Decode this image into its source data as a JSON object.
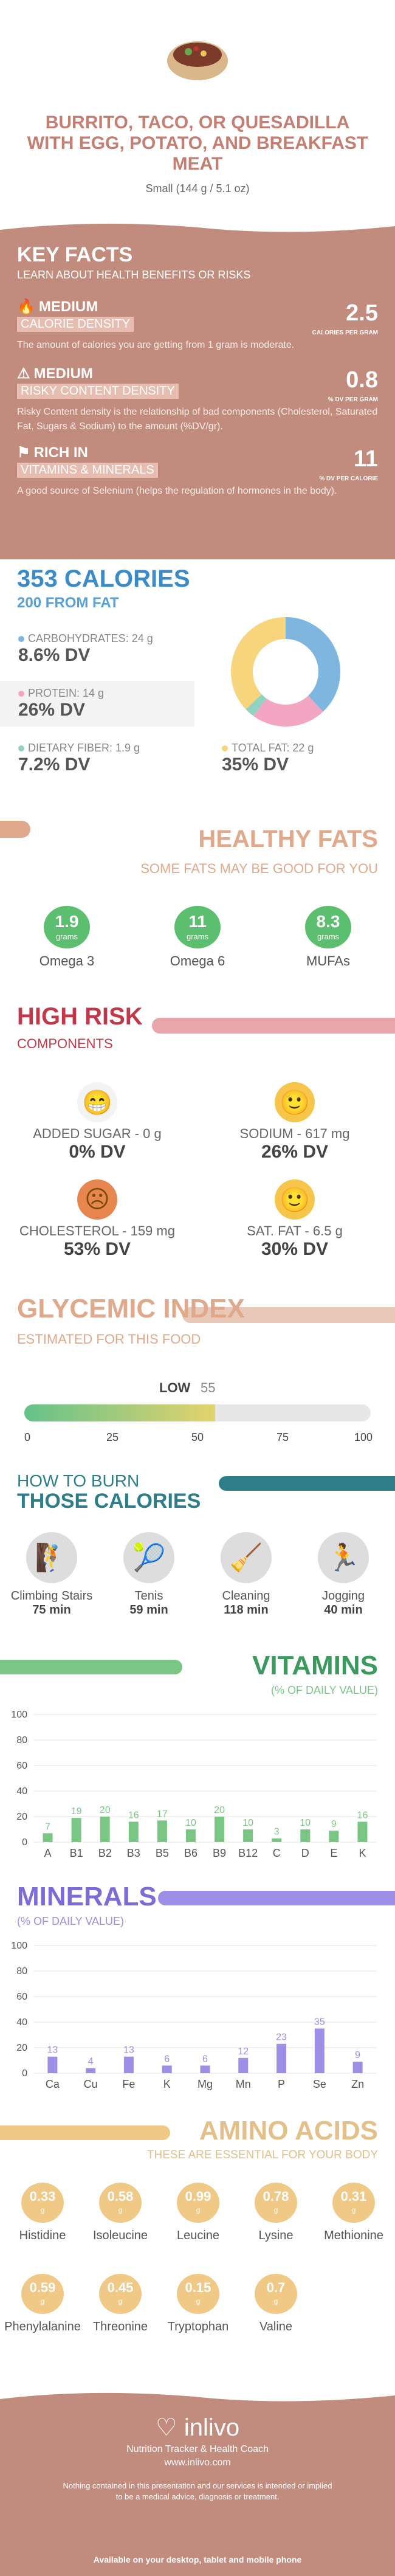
{
  "header": {
    "title": "BURRITO, TACO, OR QUESADILLA WITH EGG, POTATO, AND BREAKFAST MEAT",
    "serving": "Small (144 g / 5.1 oz)"
  },
  "key_facts": {
    "title": "KEY FACTS",
    "subtitle": "LEARN ABOUT HEALTH BENEFITS OR RISKS",
    "items": [
      {
        "tag": "MEDIUM",
        "label": "CALORIE DENSITY",
        "desc": "The amount of calories you are getting from 1 gram is moderate.",
        "value": "2.5",
        "unit": "CALORIES PER GRAM"
      },
      {
        "tag": "MEDIUM",
        "label": "RISKY CONTENT DENSITY",
        "desc": "Risky Content density is the relationship of bad components (Cholesterol, Saturated Fat, Sugars & Sodium) to the amount (%DV/gr).",
        "value": "0.8",
        "unit": "% DV PER GRAM"
      },
      {
        "tag": "RICH  IN",
        "label": "VITAMINS & MINERALS",
        "desc": "A good source of Selenium (helps the regulation of hormones in the body).",
        "value": "11",
        "unit": "% DV PER CALORIE"
      }
    ]
  },
  "calories": {
    "title": "353 CALORIES",
    "from_fat": "200 FROM FAT",
    "nutrients": [
      {
        "name": "CARBOHYDRATES: 24 g",
        "dv": "8.6% DV",
        "color": "#7fb6e0"
      },
      {
        "name": "PROTEIN: 14 g",
        "dv": "26% DV",
        "color": "#f3a6c2"
      },
      {
        "name": "DIETARY FIBER: 1.9 g",
        "dv": "7.2% DV",
        "color": "#8fd3c0"
      },
      {
        "name": "TOTAL FAT: 22 g",
        "dv": "35% DV",
        "color": "#f7d57c"
      }
    ],
    "donut": [
      {
        "value": 38,
        "color": "#7fb6e0"
      },
      {
        "value": 22,
        "color": "#f3a6c2"
      },
      {
        "value": 3,
        "color": "#8fd3c0"
      },
      {
        "value": 37,
        "color": "#f7d57c"
      }
    ]
  },
  "healthy_fats": {
    "title": "HEALTHY FATS",
    "subtitle": "SOME FATS MAY BE GOOD FOR YOU",
    "items": [
      {
        "value": "1.9",
        "unit": "grams",
        "name": "Omega 3"
      },
      {
        "value": "11",
        "unit": "grams",
        "name": "Omega 6"
      },
      {
        "value": "8.3",
        "unit": "grams",
        "name": "MUFAs"
      }
    ]
  },
  "high_risk": {
    "title": "HIGH RISK",
    "subtitle": "COMPONENTS",
    "items": [
      {
        "name": "ADDED SUGAR - 0 g",
        "dv": "0% DV",
        "face": "😁",
        "color": "#f3f3f3"
      },
      {
        "name": "SODIUM - 617 mg",
        "dv": "26% DV",
        "face": "🙂",
        "color": "#f7c54a"
      },
      {
        "name": "CHOLESTEROL - 159 mg",
        "dv": "53% DV",
        "face": "☹",
        "color": "#e8864f"
      },
      {
        "name": "SAT. FAT - 6.5 g",
        "dv": "30% DV",
        "face": "🙂",
        "color": "#f7c54a"
      }
    ]
  },
  "glycemic": {
    "title": "GLYCEMIC INDEX",
    "subtitle": "ESTIMATED FOR THIS FOOD",
    "level": "LOW",
    "value": "55",
    "fill": 0.55,
    "ticks": [
      "0",
      "25",
      "50",
      "75",
      "100"
    ]
  },
  "burn": {
    "title1": "HOW TO BURN",
    "title2": "THOSE CALORIES",
    "items": [
      {
        "icon": "🧗",
        "name": "Climbing Stairs",
        "min": "75 min"
      },
      {
        "icon": "🎾",
        "name": "Tenis",
        "min": "59 min"
      },
      {
        "icon": "🧹",
        "name": "Cleaning",
        "min": "118 min"
      },
      {
        "icon": "🏃",
        "name": "Jogging",
        "min": "40 min"
      }
    ]
  },
  "vitamins": {
    "title": "VITAMINS",
    "subtitle": "(% OF DAILY VALUE)",
    "color": "#7ac785"
  },
  "minerals": {
    "title": "MINERALS",
    "subtitle": "(% OF DAILY VALUE)",
    "color": "#9d8ee6"
  },
  "chart_data": [
    {
      "type": "bar",
      "title": "VITAMINS",
      "ylabel": "(% OF DAILY VALUE)",
      "categories": [
        "A",
        "B1",
        "B2",
        "B3",
        "B5",
        "B6",
        "B9",
        "B12",
        "C",
        "D",
        "E",
        "K"
      ],
      "values": [
        7,
        19,
        20,
        16,
        17,
        10,
        20,
        10,
        3,
        10,
        9,
        16
      ],
      "ylim": [
        0,
        100
      ],
      "yticks": [
        0,
        20,
        40,
        60,
        80,
        100
      ]
    },
    {
      "type": "bar",
      "title": "MINERALS",
      "ylabel": "(% OF DAILY VALUE)",
      "categories": [
        "Ca",
        "Cu",
        "Fe",
        "K",
        "Mg",
        "Mn",
        "P",
        "Se",
        "Zn"
      ],
      "values": [
        13,
        4,
        13,
        6,
        6,
        12,
        23,
        35,
        9
      ],
      "ylim": [
        0,
        100
      ],
      "yticks": [
        0,
        20,
        40,
        60,
        80,
        100
      ]
    }
  ],
  "amino": {
    "title": "AMINO ACIDS",
    "subtitle": "THESE ARE ESSENTIAL FOR YOUR BODY",
    "items": [
      {
        "value": "0.33",
        "name": "Histidine"
      },
      {
        "value": "0.58",
        "name": "Isoleucine"
      },
      {
        "value": "0.99",
        "name": "Leucine"
      },
      {
        "value": "0.78",
        "name": "Lysine"
      },
      {
        "value": "0.31",
        "name": "Methionine"
      },
      {
        "value": "0.59",
        "name": "Phenylalanine"
      },
      {
        "value": "0.45",
        "name": "Threonine"
      },
      {
        "value": "0.15",
        "name": "Tryptophan"
      },
      {
        "value": "0.7",
        "name": "Valine"
      }
    ],
    "unit": "g"
  },
  "footer": {
    "brand": "inlivo",
    "tagline": "Nutrition Tracker & Health Coach",
    "url": "www.inlivo.com",
    "disclaimer": "Nothing contained in this presentation and our services is intended or implied to be a medical advice, diagnosis or treatment.",
    "available": "Available on your desktop, tablet and mobile phone"
  }
}
